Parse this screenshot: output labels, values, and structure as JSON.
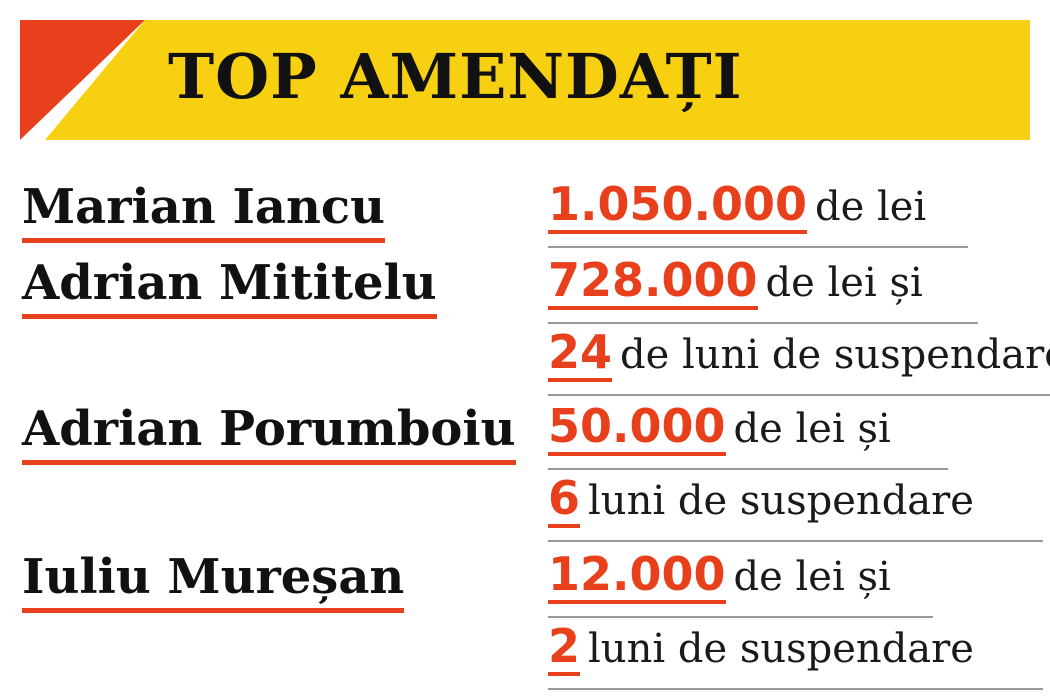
{
  "header": {
    "title": "TOP AMENDAȚI",
    "colors": {
      "banner": "#f7d011",
      "accent": "#e8401c",
      "text": "#111111"
    }
  },
  "entries": [
    {
      "name": "Marian Iancu",
      "lines": [
        {
          "amount": "1.050.000",
          "text": "de lei"
        }
      ]
    },
    {
      "name": "Adrian Mititelu",
      "lines": [
        {
          "amount": "728.000",
          "text": "de lei și"
        },
        {
          "amount": "24",
          "text": "de luni de suspendare"
        }
      ]
    },
    {
      "name": "Adrian Porumboiu",
      "lines": [
        {
          "amount": "50.000",
          "text": "de lei și"
        },
        {
          "amount": "6",
          "text": "luni de suspendare"
        }
      ]
    },
    {
      "name": "Iuliu Mureșan",
      "lines": [
        {
          "amount": "12.000",
          "text": "de lei și"
        },
        {
          "amount": "2",
          "text": "luni de suspendare"
        }
      ]
    }
  ]
}
